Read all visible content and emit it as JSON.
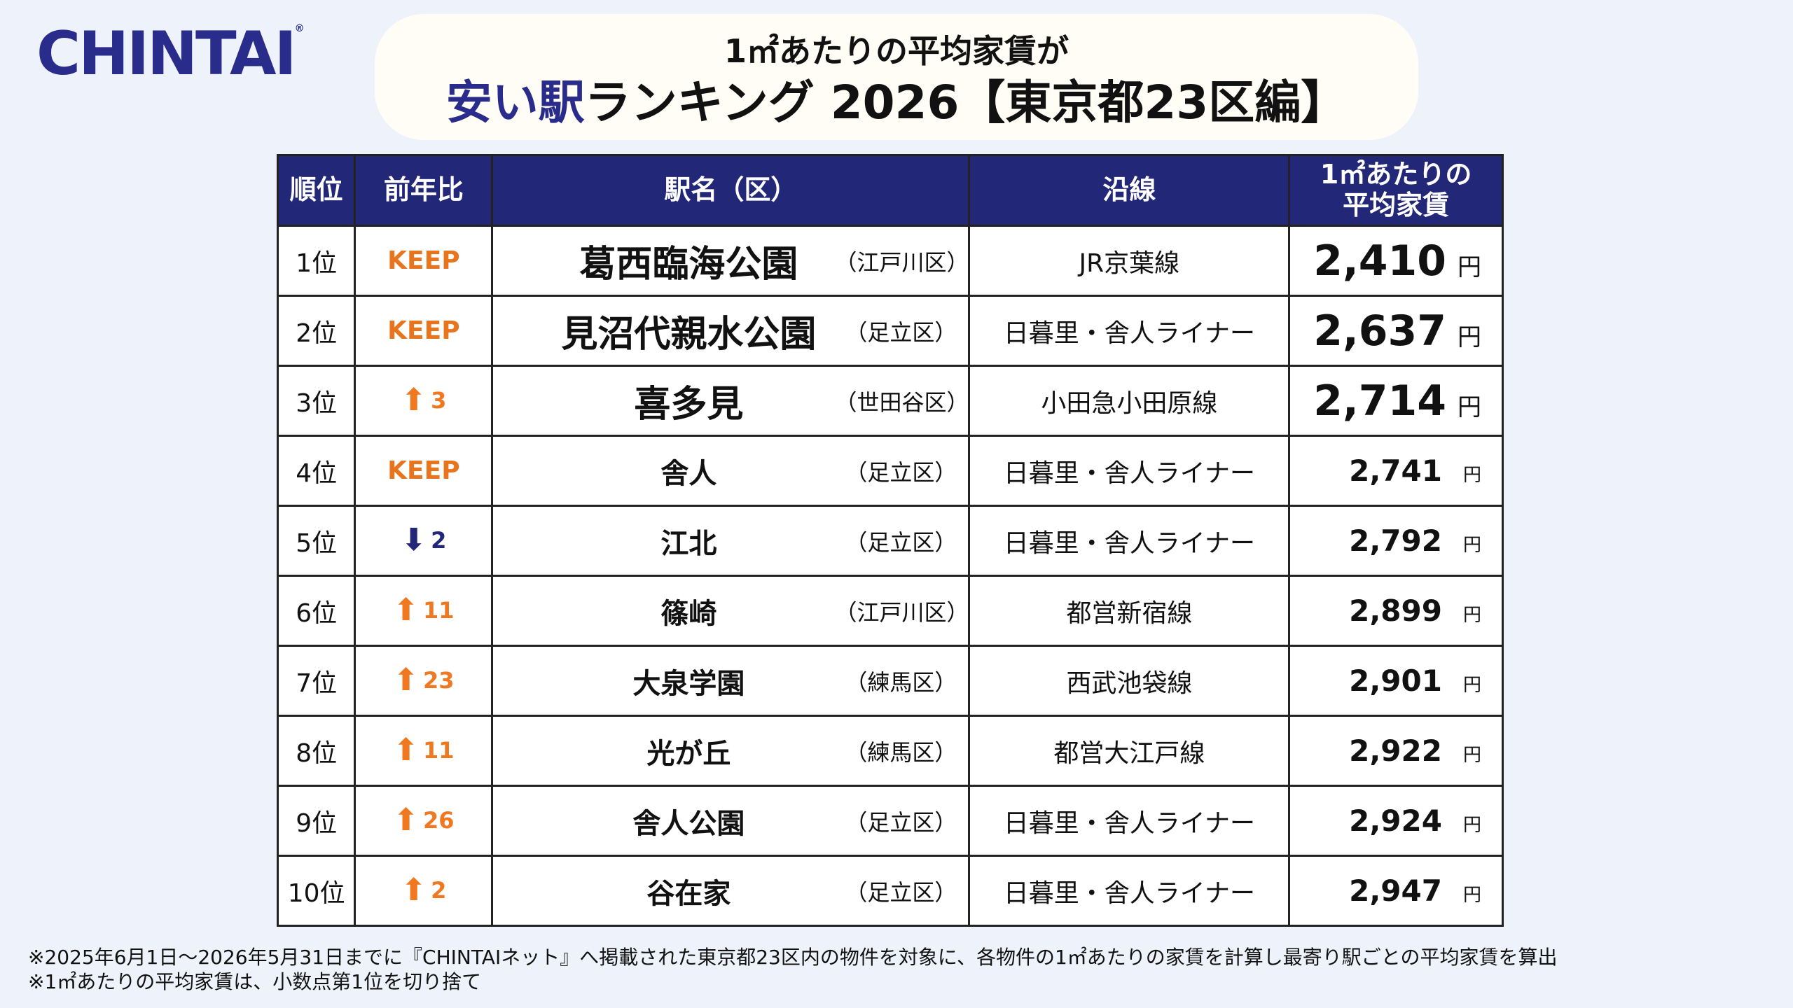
{
  "logo": {
    "text": "CHINTAI",
    "mark": "®"
  },
  "title": {
    "line1": "1㎡あたりの平均家賃が",
    "line2_accent": "安い駅",
    "line2_rest": "ランキング 2026【東京都23区編】"
  },
  "table": {
    "headers": {
      "rank": "順位",
      "yoy": "前年比",
      "station": "駅名（区）",
      "line": "沿線",
      "rent_line1": "1㎡あたりの",
      "rent_line2": "平均家賃"
    },
    "rows": [
      {
        "rank": "1位",
        "yoy": "KEEP",
        "station": "葛西臨海公園",
        "ward": "（江戸川区）",
        "line": "JR京葉線",
        "rent": "2,410",
        "unit": "円"
      },
      {
        "rank": "2位",
        "yoy": "KEEP",
        "station": "見沼代親水公園",
        "ward": "（足立区）",
        "line": "日暮里・舎人ライナー",
        "rent": "2,637",
        "unit": "円"
      },
      {
        "rank": "3位",
        "yoy_dir": "up",
        "yoy_num": "3",
        "station": "喜多見",
        "ward": "（世田谷区）",
        "line": "小田急小田原線",
        "rent": "2,714",
        "unit": "円"
      },
      {
        "rank": "4位",
        "yoy": "KEEP",
        "station": "舎人",
        "ward": "（足立区）",
        "line": "日暮里・舎人ライナー",
        "rent": "2,741",
        "unit": "円"
      },
      {
        "rank": "5位",
        "yoy_dir": "down",
        "yoy_num": "2",
        "station": "江北",
        "ward": "（足立区）",
        "line": "日暮里・舎人ライナー",
        "rent": "2,792",
        "unit": "円"
      },
      {
        "rank": "6位",
        "yoy_dir": "up",
        "yoy_num": "11",
        "station": "篠崎",
        "ward": "（江戸川区）",
        "line": "都営新宿線",
        "rent": "2,899",
        "unit": "円"
      },
      {
        "rank": "7位",
        "yoy_dir": "up",
        "yoy_num": "23",
        "station": "大泉学園",
        "ward": "（練馬区）",
        "line": "西武池袋線",
        "rent": "2,901",
        "unit": "円"
      },
      {
        "rank": "8位",
        "yoy_dir": "up",
        "yoy_num": "11",
        "station": "光が丘",
        "ward": "（練馬区）",
        "line": "都営大江戸線",
        "rent": "2,922",
        "unit": "円"
      },
      {
        "rank": "9位",
        "yoy_dir": "up",
        "yoy_num": "26",
        "station": "舎人公園",
        "ward": "（足立区）",
        "line": "日暮里・舎人ライナー",
        "rent": "2,924",
        "unit": "円"
      },
      {
        "rank": "10位",
        "yoy_dir": "up",
        "yoy_num": "2",
        "station": "谷在家",
        "ward": "（足立区）",
        "line": "日暮里・舎人ライナー",
        "rent": "2,947",
        "unit": "円"
      }
    ]
  },
  "notes": {
    "line1": "※2025年6月1日～2026年5月31日までに『CHINTAIネット』へ掲載された東京都23区内の物件を対象に、各物件の1㎡あたりの家賃を計算し最寄り駅ごとの平均家賃を算出",
    "line2": "※1㎡あたりの平均家賃は、小数点第1位を切り捨て"
  },
  "colors": {
    "navy": "#232778",
    "orange": "#f07820",
    "background": "#eef3fb"
  },
  "icons": {
    "up": "arrow-up-icon",
    "down": "arrow-down-icon"
  }
}
